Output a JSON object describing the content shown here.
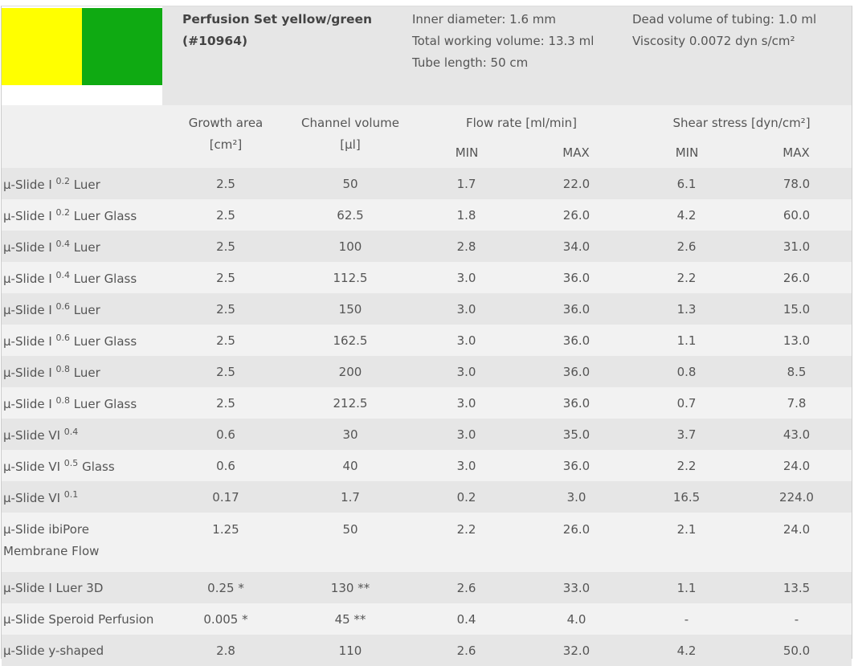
{
  "colors": {
    "left": "#ffff00",
    "right": "#0faa12"
  },
  "product": {
    "title_line1": "Perfusion Set yellow/green",
    "title_line2": "(#10964)",
    "inner_diameter": "Inner diameter: 1.6 mm",
    "total_volume": "Total working volume: 13.3 ml",
    "tube_length": "Tube length: 50 cm",
    "dead_volume": "Dead volume of tubing: 1.0 ml",
    "viscosity": "Viscosity 0.0072 dyn s/cm²"
  },
  "headers": {
    "growth_l1": "Growth area",
    "growth_l2": "[cm²]",
    "channel_l1": "Channel volume",
    "channel_l2": "[µl]",
    "flow": "Flow rate [ml/min]",
    "shear": "Shear stress [dyn/cm²]",
    "min": "MIN",
    "max": "MAX"
  },
  "rows": [
    {
      "name": "µ-Slide I ",
      "sup": "0.2",
      "suffix": " Luer",
      "growth": "2.5",
      "channel": "50",
      "fmin": "1.7",
      "fmax": "22.0",
      "smin": "6.1",
      "smax": "78.0"
    },
    {
      "name": "µ-Slide I ",
      "sup": "0.2",
      "suffix": " Luer Glass",
      "growth": "2.5",
      "channel": "62.5",
      "fmin": "1.8",
      "fmax": "26.0",
      "smin": "4.2",
      "smax": "60.0"
    },
    {
      "name": "µ-Slide I ",
      "sup": "0.4",
      "suffix": " Luer",
      "growth": "2.5",
      "channel": "100",
      "fmin": "2.8",
      "fmax": "34.0",
      "smin": "2.6",
      "smax": "31.0"
    },
    {
      "name": "µ-Slide I ",
      "sup": "0.4",
      "suffix": " Luer Glass",
      "growth": "2.5",
      "channel": "112.5",
      "fmin": "3.0",
      "fmax": "36.0",
      "smin": "2.2",
      "smax": "26.0"
    },
    {
      "name": "µ-Slide I ",
      "sup": "0.6",
      "suffix": " Luer",
      "growth": "2.5",
      "channel": "150",
      "fmin": "3.0",
      "fmax": "36.0",
      "smin": "1.3",
      "smax": "15.0"
    },
    {
      "name": "µ-Slide I ",
      "sup": "0.6",
      "suffix": " Luer Glass",
      "growth": "2.5",
      "channel": "162.5",
      "fmin": "3.0",
      "fmax": "36.0",
      "smin": "1.1",
      "smax": "13.0"
    },
    {
      "name": "µ-Slide I ",
      "sup": "0.8",
      "suffix": " Luer",
      "growth": "2.5",
      "channel": "200",
      "fmin": "3.0",
      "fmax": "36.0",
      "smin": "0.8",
      "smax": "8.5"
    },
    {
      "name": "µ-Slide I ",
      "sup": "0.8",
      "suffix": " Luer Glass",
      "growth": "2.5",
      "channel": "212.5",
      "fmin": "3.0",
      "fmax": "36.0",
      "smin": "0.7",
      "smax": "7.8"
    },
    {
      "name": "µ-Slide VI ",
      "sup": "0.4",
      "suffix": "",
      "growth": "0.6",
      "channel": "30",
      "fmin": "3.0",
      "fmax": "35.0",
      "smin": "3.7",
      "smax": "43.0"
    },
    {
      "name": "µ-Slide VI ",
      "sup": "0.5",
      "suffix": " Glass",
      "growth": "0.6",
      "channel": "40",
      "fmin": "3.0",
      "fmax": "36.0",
      "smin": "2.2",
      "smax": "24.0"
    },
    {
      "name": "µ-Slide VI ",
      "sup": "0.1",
      "suffix": "",
      "growth": "0.17",
      "channel": "1.7",
      "fmin": "0.2",
      "fmax": "3.0",
      "smin": "16.5",
      "smax": "224.0"
    },
    {
      "name": "µ-Slide ibiPore",
      "name2": "Membrane Flow",
      "growth": "1.25",
      "channel": "50",
      "fmin": "2.2",
      "fmax": "26.0",
      "smin": "2.1",
      "smax": "24.0"
    },
    {
      "name": "µ-Slide I Luer 3D",
      "growth": "0.25 *",
      "channel": "130 **",
      "fmin": "2.6",
      "fmax": "33.0",
      "smin": "1.1",
      "smax": "13.5"
    },
    {
      "name": "µ-Slide Speroid Perfusion",
      "growth": "0.005 *",
      "channel": "45 **",
      "fmin": "0.4",
      "fmax": "4.0",
      "smin": "-",
      "smax": "-"
    },
    {
      "name": "µ-Slide y-shaped",
      "growth": "2.8",
      "channel": "110",
      "fmin": "2.6",
      "fmax": "32.0",
      "smin": "4.2",
      "smax": "50.0"
    }
  ]
}
